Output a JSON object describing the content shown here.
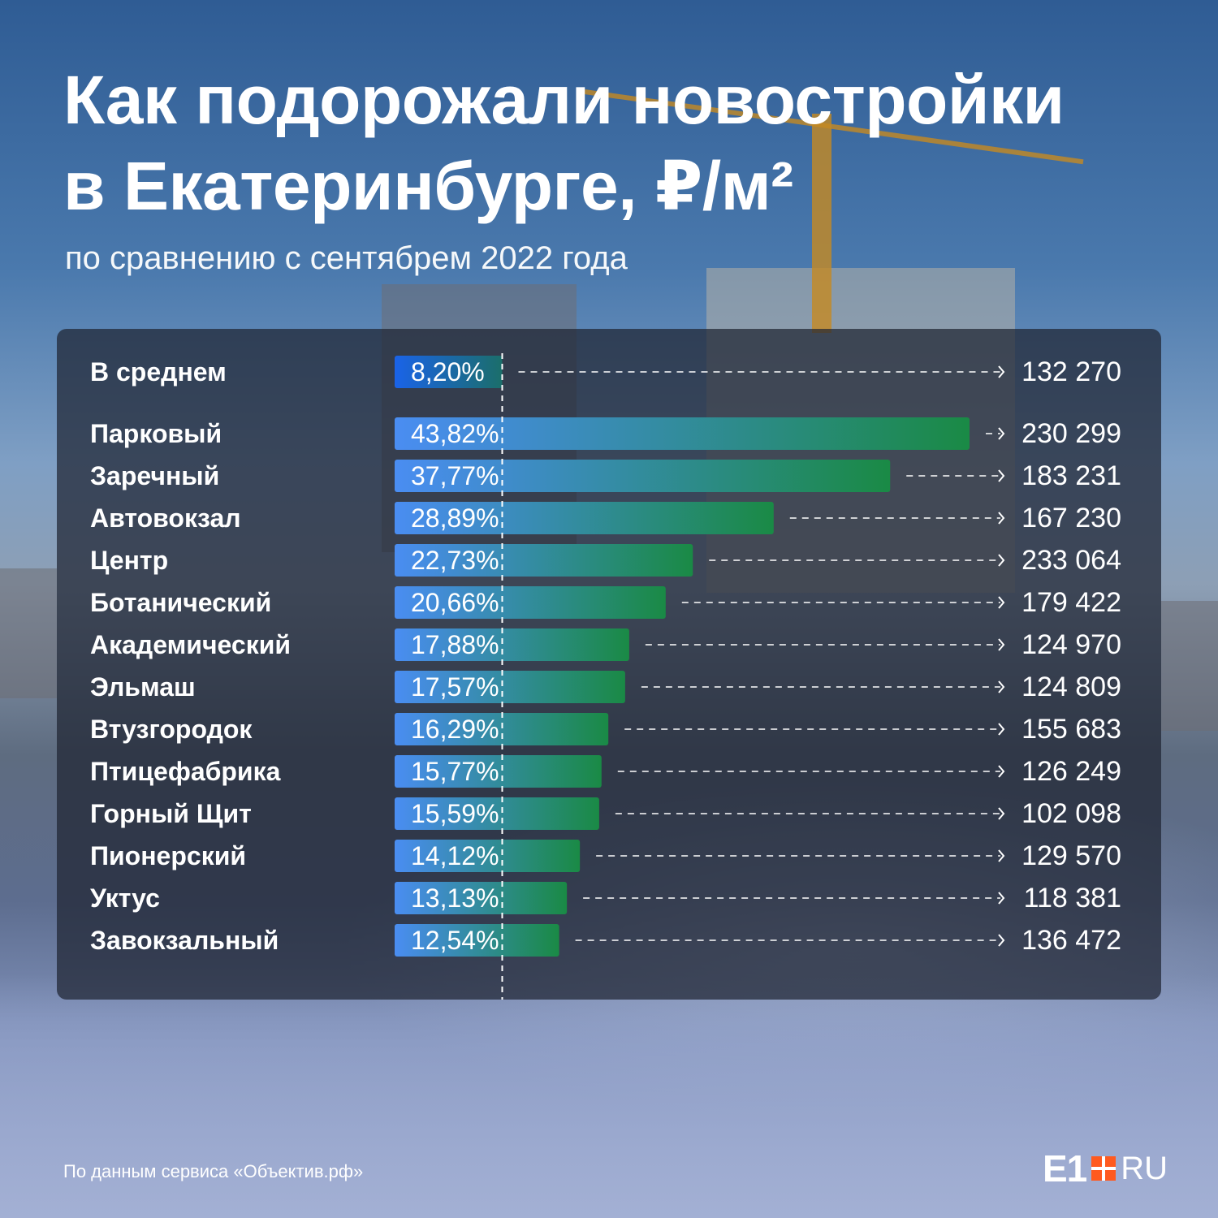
{
  "title_line1": "Как подорожали новостройки",
  "title_line2": "в Екатеринбурге, ₽/м²",
  "subtitle": "по сравнению с сентябрем 2022 года",
  "source": "По данным сервиса «Объектив.рф»",
  "logo": {
    "brand": "E1",
    "domain": "RU"
  },
  "colors": {
    "bar_start": "#4a8df2",
    "bar_end": "#1a8a45",
    "average_bar_start": "#1a63e8",
    "average_bar_end": "#1b6e6a",
    "text": "#ffffff",
    "logo_accent": "#ff5a1f"
  },
  "chart_data": {
    "type": "bar",
    "orientation": "horizontal",
    "title": "Как подорожали новостройки в Екатеринбурге, ₽/м²",
    "subtitle": "по сравнению с сентябрем 2022 года",
    "xlim": [
      0,
      45
    ],
    "reference_line": 8.2,
    "average": {
      "category": "В среднем",
      "value": 8.2,
      "label": "8,20%",
      "price": "132 270"
    },
    "categories": [
      "Парковый",
      "Заречный",
      "Автовокзал",
      "Центр",
      "Ботанический",
      "Академический",
      "Эльмаш",
      "Втузгородок",
      "Птицефабрика",
      "Горный Щит",
      "Пионерский",
      "Уктус",
      "Завокзальный"
    ],
    "values": [
      43.82,
      37.77,
      28.89,
      22.73,
      20.66,
      17.88,
      17.57,
      16.29,
      15.77,
      15.59,
      14.12,
      13.13,
      12.54
    ],
    "value_labels": [
      "43,82%",
      "37,77%",
      "28,89%",
      "22,73%",
      "20,66%",
      "17,88%",
      "17,57%",
      "16,29%",
      "15,77%",
      "15,59%",
      "14,12%",
      "13,13%",
      "12,54%"
    ],
    "prices": [
      "230 299",
      "183 231",
      "167 230",
      "233 064",
      "179 422",
      "124 970",
      "124 809",
      "155 683",
      "126 249",
      "102 098",
      "129 570",
      "118 381",
      "136 472"
    ]
  }
}
